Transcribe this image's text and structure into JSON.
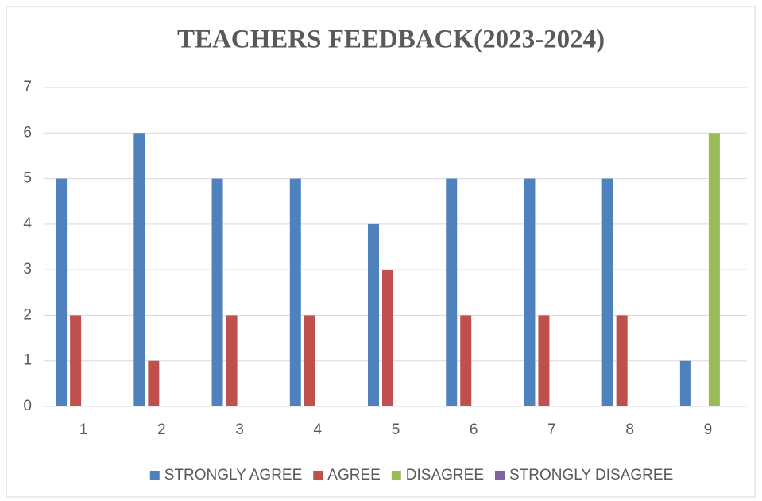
{
  "chart_data": {
    "type": "bar",
    "title": "TEACHERS FEEDBACK(2023-2024)",
    "categories": [
      "1",
      "2",
      "3",
      "4",
      "5",
      "6",
      "7",
      "8",
      "9"
    ],
    "series": [
      {
        "name": "STRONGLY AGREE",
        "color": "#4f81bd",
        "values": [
          5,
          6,
          5,
          5,
          4,
          5,
          5,
          5,
          1
        ]
      },
      {
        "name": "AGREE",
        "color": "#c0504d",
        "values": [
          2,
          1,
          2,
          2,
          3,
          2,
          2,
          2,
          0
        ]
      },
      {
        "name": "DISAGREE",
        "color": "#9bbb59",
        "values": [
          0,
          0,
          0,
          0,
          0,
          0,
          0,
          0,
          6
        ]
      },
      {
        "name": "STRONGLY DISAGREE",
        "color": "#8064a2",
        "values": [
          0,
          0,
          0,
          0,
          0,
          0,
          0,
          0,
          0
        ]
      }
    ],
    "ylim": [
      0,
      7
    ],
    "yticks": [
      0,
      1,
      2,
      3,
      4,
      5,
      6,
      7
    ],
    "grid": true,
    "legend": "bottom"
  }
}
